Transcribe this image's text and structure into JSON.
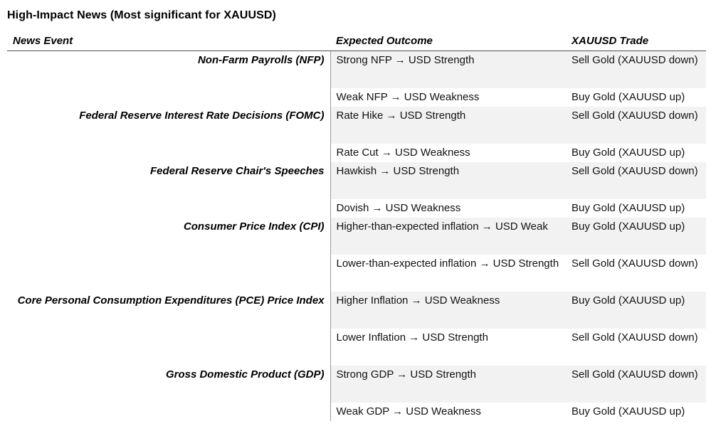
{
  "page": {
    "title": "High-Impact News (Most significant for XAUUSD)"
  },
  "colors": {
    "stripe": "#f2f2f2",
    "header_rule": "#4d4d4d",
    "column_divider": "#9b9b9b",
    "text": "#111111"
  },
  "table": {
    "headers": [
      "News Event",
      "Expected Outcome",
      "XAUUSD Trade"
    ],
    "rows": [
      {
        "event": "Non-Farm Payrolls (NFP)",
        "outcome": "Strong NFP → USD Strength",
        "trade": "Sell Gold (XAUUSD down)"
      },
      {
        "event": "",
        "outcome": "Weak NFP → USD Weakness",
        "trade": "Buy Gold (XAUUSD up)"
      },
      {
        "event": "Federal Reserve Interest Rate Decisions (FOMC)",
        "outcome": "Rate Hike → USD Strength",
        "trade": "Sell Gold (XAUUSD down)"
      },
      {
        "event": "",
        "outcome": "Rate Cut → USD Weakness",
        "trade": "Buy Gold (XAUUSD up)"
      },
      {
        "event": "Federal Reserve Chair's Speeches",
        "outcome": "Hawkish → USD Strength",
        "trade": "Sell Gold (XAUUSD down)"
      },
      {
        "event": "",
        "outcome": "Dovish → USD Weakness",
        "trade": "Buy Gold (XAUUSD up)"
      },
      {
        "event": "Consumer Price Index (CPI)",
        "outcome": "Higher-than-expected inflation → USD Weak",
        "trade": "Buy Gold (XAUUSD up)"
      },
      {
        "event": "",
        "outcome": "Lower-than-expected inflation → USD Strength",
        "trade": "Sell Gold (XAUUSD down)"
      },
      {
        "event": "Core Personal Consumption Expenditures (PCE) Price Index",
        "outcome": "Higher Inflation → USD Weakness",
        "trade": "Buy Gold (XAUUSD up)"
      },
      {
        "event": "",
        "outcome": "Lower Inflation → USD Strength",
        "trade": "Sell Gold (XAUUSD down)"
      },
      {
        "event": "Gross Domestic Product (GDP)",
        "outcome": "Strong GDP → USD Strength",
        "trade": "Sell Gold (XAUUSD down)"
      },
      {
        "event": "",
        "outcome": "Weak GDP → USD Weakness",
        "trade": "Buy Gold (XAUUSD up)"
      }
    ]
  }
}
